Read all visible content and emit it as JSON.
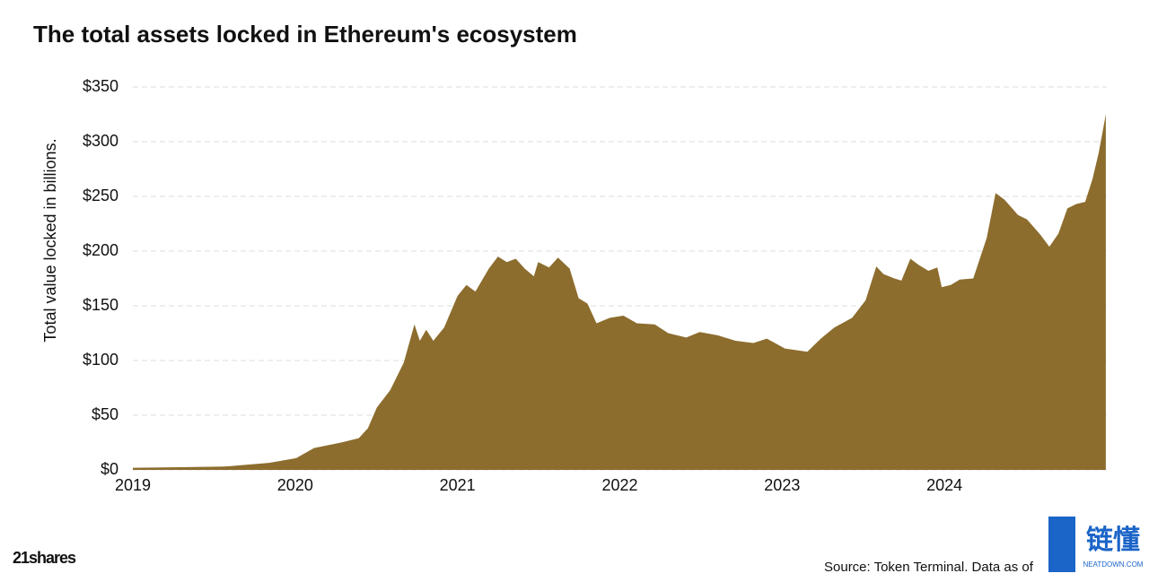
{
  "chart_data": {
    "type": "area",
    "title": "The total assets locked in Ethereum's ecosystem",
    "y_label": "Total value locked in billions.",
    "source": "Source: Token Terminal. Data as of",
    "brand": "21shares",
    "watermark": "链懂",
    "watermark_sub": "NEATDOWN.COM",
    "color": "#8c6d2e",
    "grid": true,
    "xlim": [
      2019,
      2025
    ],
    "xticks": [
      2019,
      2020,
      2021,
      2022,
      2023,
      2024
    ],
    "ylim": [
      0,
      350
    ],
    "yticks": [
      {
        "value": 0,
        "label": "$0"
      },
      {
        "value": 50,
        "label": "$50"
      },
      {
        "value": 100,
        "label": "$100"
      },
      {
        "value": 150,
        "label": "$150"
      },
      {
        "value": 200,
        "label": "$200"
      },
      {
        "value": 250,
        "label": "$250"
      },
      {
        "value": 300,
        "label": "$300"
      },
      {
        "value": 350,
        "label": "$350"
      }
    ],
    "x": [
      2019.0,
      2019.287,
      2019.564,
      2019.84,
      2020.006,
      2020.116,
      2020.282,
      2020.392,
      2020.448,
      2020.503,
      2020.586,
      2020.669,
      2020.735,
      2020.768,
      2020.807,
      2020.851,
      2020.917,
      2021.0,
      2021.055,
      2021.11,
      2021.193,
      2021.249,
      2021.304,
      2021.359,
      2021.414,
      2021.47,
      2021.497,
      2021.564,
      2021.619,
      2021.691,
      2021.746,
      2021.801,
      2021.856,
      2021.939,
      2022.022,
      2022.105,
      2022.215,
      2022.298,
      2022.409,
      2022.492,
      2022.602,
      2022.713,
      2022.823,
      2022.906,
      2023.017,
      2023.155,
      2023.238,
      2023.32,
      2023.431,
      2023.514,
      2023.58,
      2023.624,
      2023.691,
      2023.735,
      2023.79,
      2023.845,
      2023.901,
      2023.956,
      2023.983,
      2024.039,
      2024.094,
      2024.177,
      2024.26,
      2024.315,
      2024.37,
      2024.453,
      2024.508,
      2024.591,
      2024.646,
      2024.702,
      2024.757,
      2024.812,
      2024.867,
      2024.912,
      2024.95,
      2024.994
    ],
    "values": [
      2,
      2.5,
      3,
      6.5,
      10.7,
      20,
      25,
      29,
      38,
      57,
      73,
      98,
      133,
      118,
      128,
      118,
      130,
      159,
      169,
      163,
      184,
      195,
      190,
      193,
      184,
      177,
      190,
      185,
      194,
      184,
      157,
      152,
      134,
      139,
      141,
      134,
      133,
      125,
      121,
      126,
      123,
      118,
      116,
      120,
      111,
      108,
      120,
      130,
      139,
      155,
      186,
      179,
      175,
      173,
      193,
      187,
      182,
      185,
      167,
      169,
      174,
      175,
      212,
      253,
      247,
      233,
      229,
      215,
      204,
      216,
      239,
      243,
      245,
      266,
      290,
      325
    ]
  }
}
